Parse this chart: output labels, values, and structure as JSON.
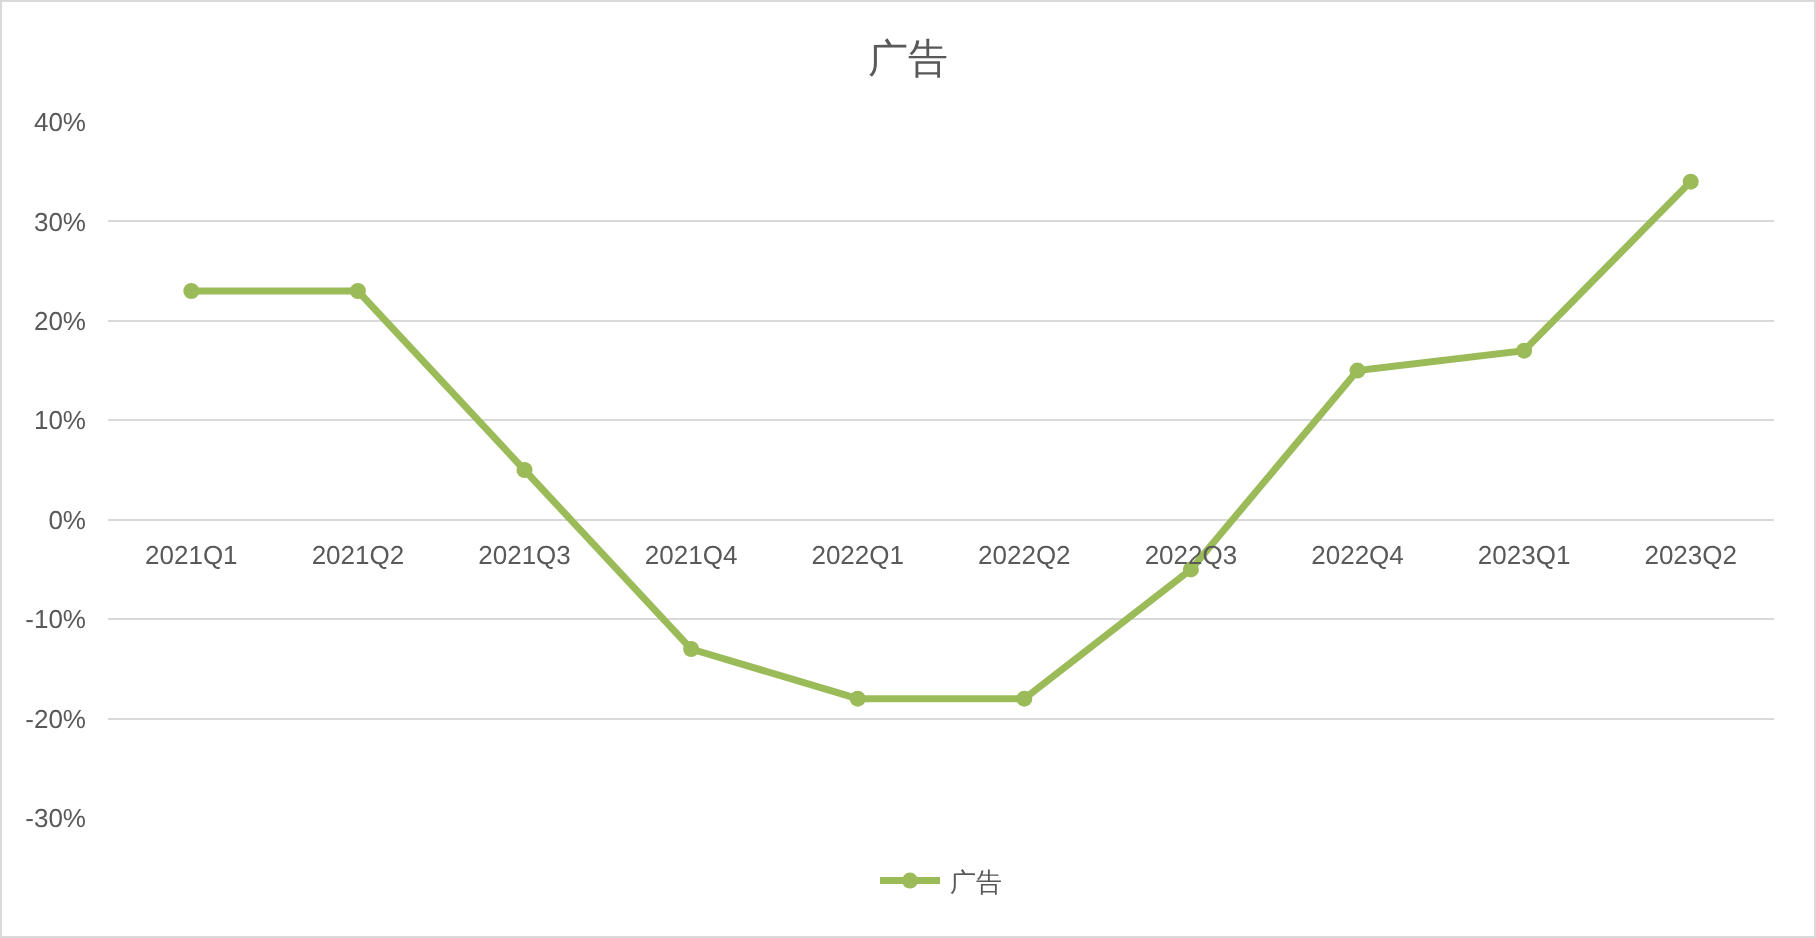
{
  "chart_data": {
    "type": "line",
    "title": "广告",
    "categories": [
      "2021Q1",
      "2021Q2",
      "2021Q3",
      "2021Q4",
      "2022Q1",
      "2022Q2",
      "2022Q3",
      "2022Q4",
      "2023Q1",
      "2023Q2"
    ],
    "series": [
      {
        "name": "广告",
        "color": "#9bbb59",
        "values": [
          23,
          23,
          5,
          -13,
          -18,
          -18,
          -5,
          15,
          17,
          34
        ]
      }
    ],
    "ylim": [
      -30,
      40
    ],
    "yticks": [
      {
        "value": -30,
        "label": "-30%"
      },
      {
        "value": -20,
        "label": "-20%"
      },
      {
        "value": -10,
        "label": "-10%"
      },
      {
        "value": 0,
        "label": "0%"
      },
      {
        "value": 10,
        "label": "10%"
      },
      {
        "value": 20,
        "label": "20%"
      },
      {
        "value": 30,
        "label": "30%"
      },
      {
        "value": 40,
        "label": "40%"
      }
    ],
    "grid": "y",
    "legend": "bottom",
    "marker": "circle",
    "line_style": "solid"
  }
}
